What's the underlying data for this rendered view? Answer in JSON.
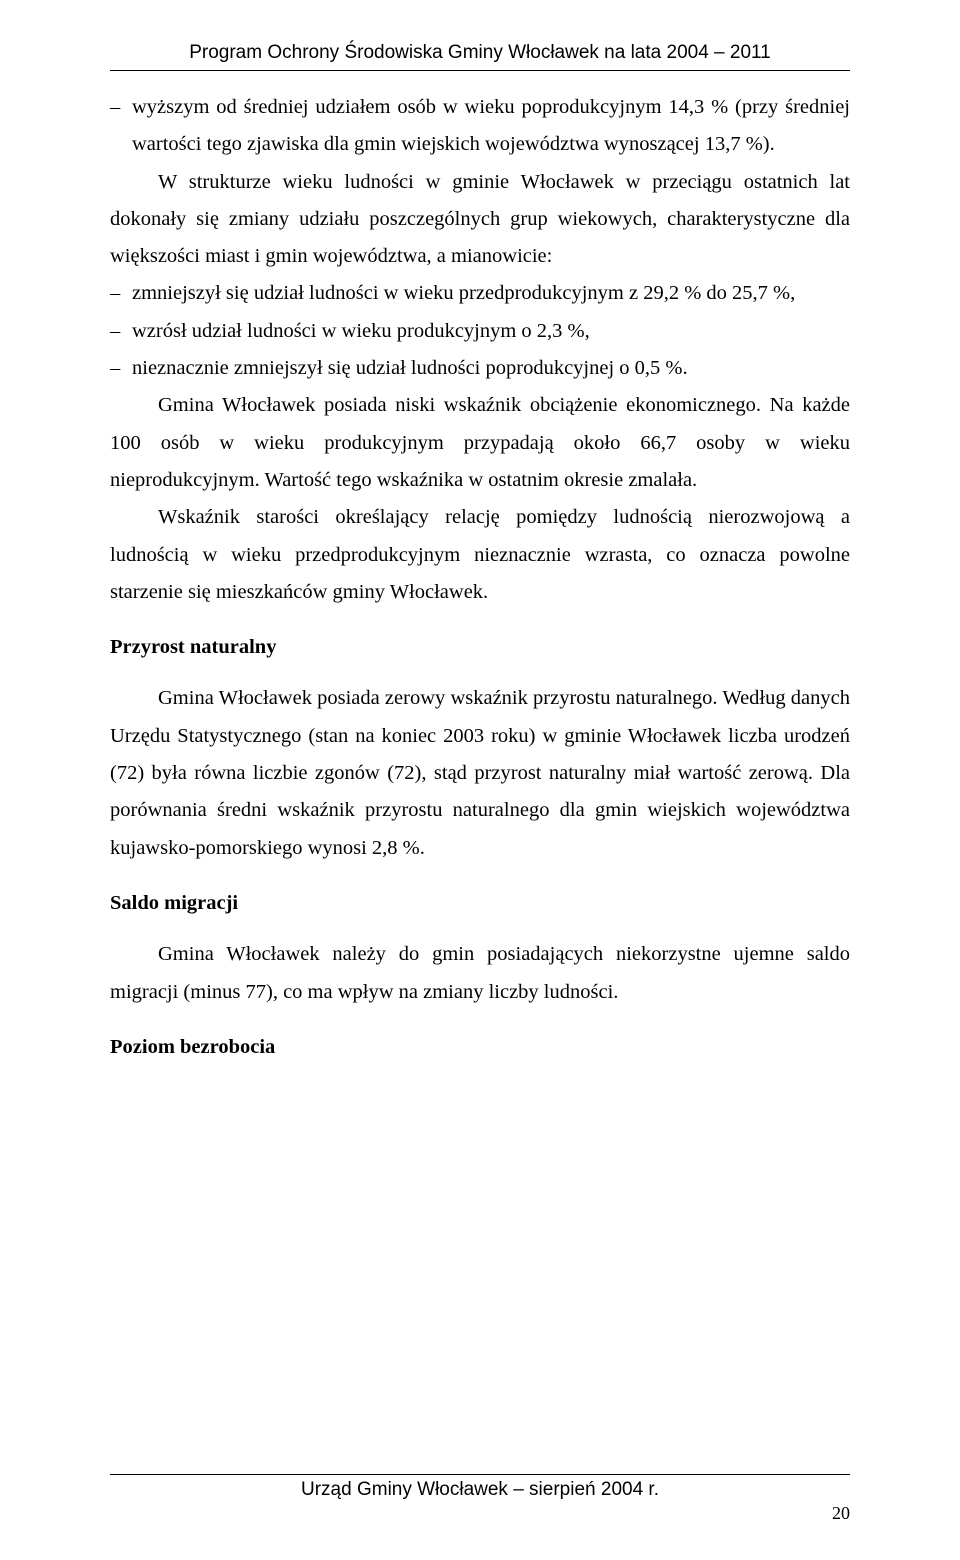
{
  "header": {
    "title": "Program Ochrony Środowiska Gminy Włocławek na lata 2004 – 2011"
  },
  "content": {
    "bullet1": "wyższym od średniej udziałem osób w wieku poprodukcyjnym 14,3 % (przy średniej wartości tego zjawiska dla gmin wiejskich województwa wynoszącej 13,7 %).",
    "para1": "W strukturze wieku ludności w gminie Włocławek w przeciągu ostatnich lat dokonały się zmiany udziału poszczególnych grup wiekowych, charakterystyczne dla większości miast i gmin województwa, a mianowicie:",
    "bullet2": "zmniejszył się udział ludności w wieku przedprodukcyjnym z 29,2 % do 25,7 %,",
    "bullet3": "wzrósł udział ludności w wieku produkcyjnym o 2,3 %,",
    "bullet4": "nieznacznie zmniejszył się udział ludności poprodukcyjnej o 0,5 %.",
    "para2": "Gmina Włocławek posiada niski wskaźnik obciążenie ekonomicznego. Na każde 100 osób w wieku produkcyjnym przypadają około 66,7 osoby w wieku nieprodukcyjnym. Wartość tego wskaźnika w ostatnim okresie zmalała.",
    "para3": "Wskaźnik starości określający relację pomiędzy ludnością nierozwojową a ludnością w wieku przedprodukcyjnym nieznacznie wzrasta, co oznacza powolne starzenie się mieszkańców gminy Włocławek.",
    "heading1": "Przyrost naturalny",
    "para4": "Gmina Włocławek posiada zerowy  wskaźnik przyrostu naturalnego. Według danych Urzędu Statystycznego (stan na koniec 2003 roku) w gminie Włocławek liczba urodzeń (72) była równa  liczbie zgonów (72),  stąd przyrost naturalny miał wartość zerową. Dla porównania średni wskaźnik przyrostu naturalnego dla gmin wiejskich województwa kujawsko-pomorskiego wynosi 2,8 %.",
    "heading2": "Saldo migracji",
    "para5": "Gmina Włocławek należy do gmin posiadających niekorzystne ujemne saldo migracji (minus 77), co ma wpływ na zmiany liczby ludności.",
    "heading3": "Poziom bezrobocia"
  },
  "footer": {
    "text": "Urząd Gminy Włocławek – sierpień 2004 r.",
    "page_number": "20"
  }
}
